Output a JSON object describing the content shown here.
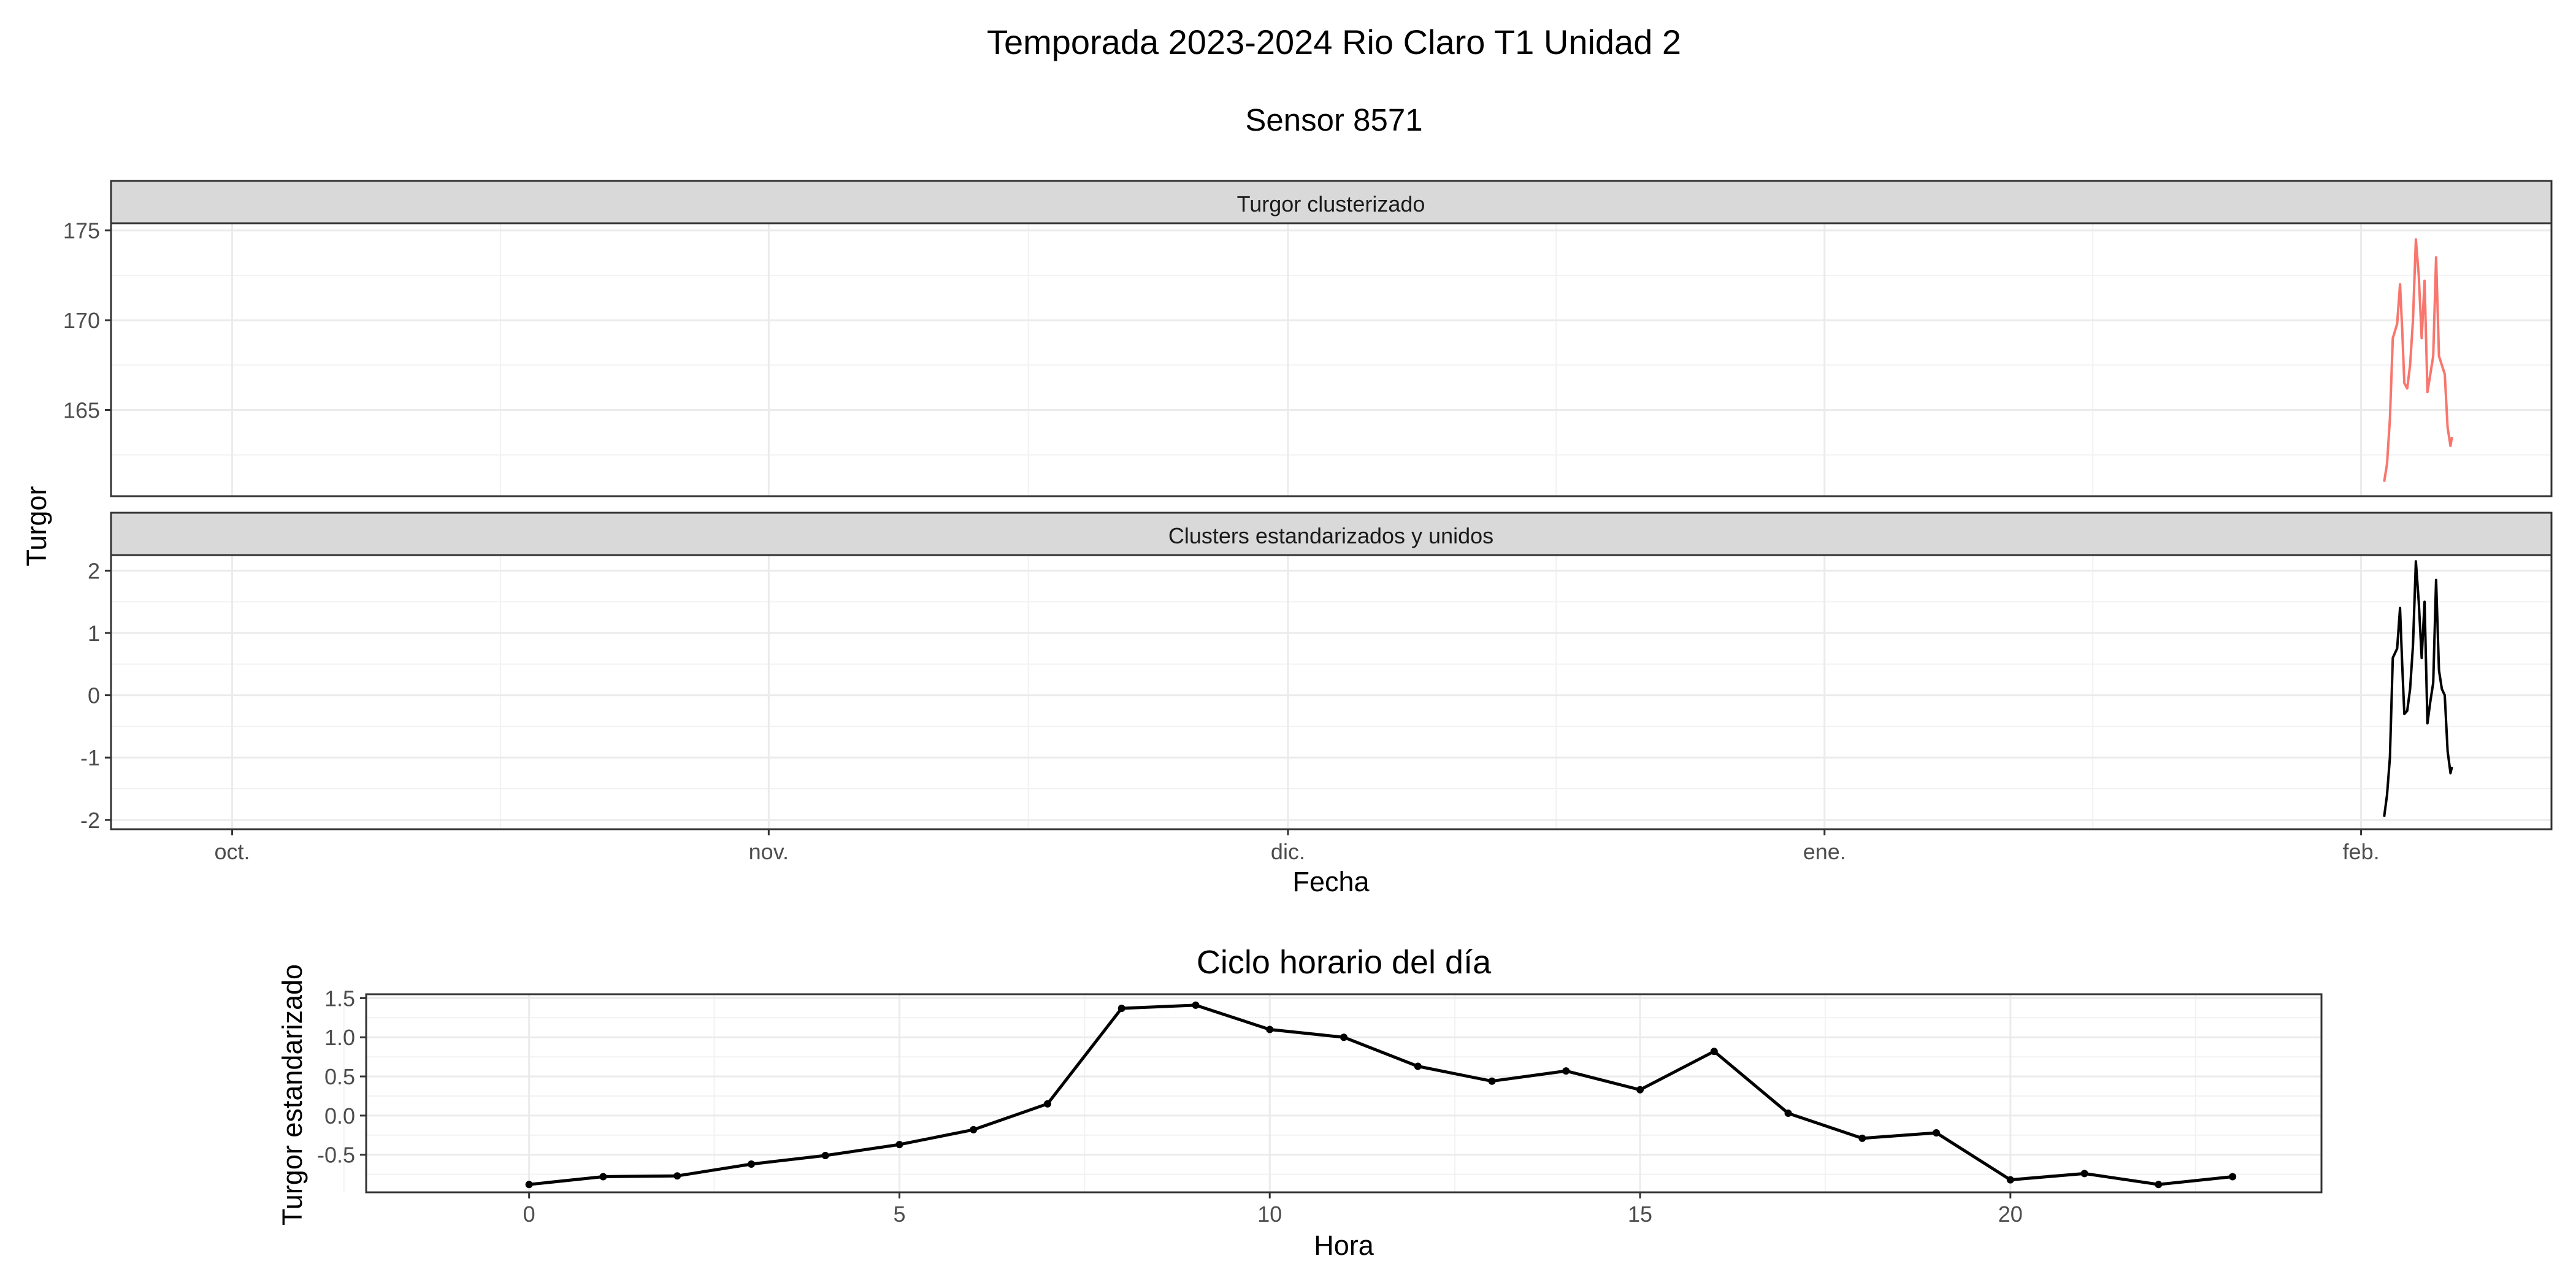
{
  "figure": {
    "title": "Temporada 2023-2024 Rio Claro T1 Unidad 2",
    "subtitle": "Sensor 8571"
  },
  "chart_data": [
    {
      "type": "line",
      "facet_label": "Turgor clusterizado",
      "ylabel": "Turgor",
      "xlabel": "Fecha",
      "x_axis": {
        "kind": "date",
        "range": [
          "2023-09-24",
          "2024-02-12"
        ],
        "ticks": [
          {
            "date": "2023-10-01",
            "label": "oct."
          },
          {
            "date": "2023-11-01",
            "label": "nov."
          },
          {
            "date": "2023-12-01",
            "label": "dic."
          },
          {
            "date": "2024-01-01",
            "label": "ene."
          },
          {
            "date": "2024-02-01",
            "label": "feb."
          }
        ]
      },
      "ylim": [
        160.2,
        175.4
      ],
      "yticks": [
        165,
        170,
        175
      ],
      "grid": true,
      "series": [
        {
          "color": "#F8766D",
          "points": [
            [
              "2024-02-02 08:00",
              161.0
            ],
            [
              "2024-02-02 12:00",
              162.0
            ],
            [
              "2024-02-02 16:00",
              164.5
            ],
            [
              "2024-02-02 20:00",
              169.0
            ],
            [
              "2024-02-03 02:00",
              169.8
            ],
            [
              "2024-02-03 06:00",
              172.0
            ],
            [
              "2024-02-03 09:00",
              169.5
            ],
            [
              "2024-02-03 12:00",
              166.5
            ],
            [
              "2024-02-03 16:00",
              166.2
            ],
            [
              "2024-02-03 20:00",
              167.5
            ],
            [
              "2024-02-04 00:00",
              170.0
            ],
            [
              "2024-02-04 04:00",
              174.5
            ],
            [
              "2024-02-04 08:00",
              172.5
            ],
            [
              "2024-02-04 12:00",
              169.0
            ],
            [
              "2024-02-04 16:00",
              172.2
            ],
            [
              "2024-02-04 20:00",
              166.0
            ],
            [
              "2024-02-05 00:00",
              167.0
            ],
            [
              "2024-02-05 04:00",
              168.0
            ],
            [
              "2024-02-05 08:00",
              173.5
            ],
            [
              "2024-02-05 12:00",
              168.0
            ],
            [
              "2024-02-05 16:00",
              167.5
            ],
            [
              "2024-02-05 20:00",
              167.0
            ],
            [
              "2024-02-06 00:00",
              164.0
            ],
            [
              "2024-02-06 04:00",
              163.0
            ],
            [
              "2024-02-06 06:00",
              163.5
            ]
          ]
        }
      ]
    },
    {
      "type": "line",
      "facet_label": "Clusters estandarizados y unidos",
      "ylabel": "Turgor",
      "xlabel": "Fecha",
      "ylim": [
        -2.15,
        2.25
      ],
      "yticks": [
        -2,
        -1,
        0,
        1,
        2
      ],
      "grid": true,
      "series": [
        {
          "color": "#000000",
          "points": [
            [
              "2024-02-02 08:00",
              -1.95
            ],
            [
              "2024-02-02 12:00",
              -1.6
            ],
            [
              "2024-02-02 16:00",
              -1.0
            ],
            [
              "2024-02-02 20:00",
              0.6
            ],
            [
              "2024-02-03 02:00",
              0.75
            ],
            [
              "2024-02-03 06:00",
              1.4
            ],
            [
              "2024-02-03 09:00",
              0.5
            ],
            [
              "2024-02-03 12:00",
              -0.3
            ],
            [
              "2024-02-03 16:00",
              -0.25
            ],
            [
              "2024-02-03 20:00",
              0.1
            ],
            [
              "2024-02-04 00:00",
              0.8
            ],
            [
              "2024-02-04 04:00",
              2.15
            ],
            [
              "2024-02-04 08:00",
              1.5
            ],
            [
              "2024-02-04 12:00",
              0.6
            ],
            [
              "2024-02-04 16:00",
              1.5
            ],
            [
              "2024-02-04 20:00",
              -0.45
            ],
            [
              "2024-02-05 00:00",
              -0.1
            ],
            [
              "2024-02-05 04:00",
              0.2
            ],
            [
              "2024-02-05 08:00",
              1.85
            ],
            [
              "2024-02-05 12:00",
              0.4
            ],
            [
              "2024-02-05 16:00",
              0.1
            ],
            [
              "2024-02-05 20:00",
              0.0
            ],
            [
              "2024-02-06 00:00",
              -0.9
            ],
            [
              "2024-02-06 04:00",
              -1.25
            ],
            [
              "2024-02-06 06:00",
              -1.15
            ]
          ]
        }
      ]
    },
    {
      "type": "line",
      "title": "Ciclo horario del día",
      "xlabel": "Hora",
      "ylabel": "Turgor estandarizado",
      "xlim": [
        -2.2,
        24.2
      ],
      "ylim": [
        -0.98,
        1.55
      ],
      "xticks": [
        0,
        5,
        10,
        15,
        20
      ],
      "yticks": [
        -0.5,
        0.0,
        0.5,
        1.0,
        1.5
      ],
      "ytick_labels": [
        "-0.5",
        "0.0",
        "0.5",
        "1.0",
        "1.5"
      ],
      "grid": true,
      "markers": true,
      "x": [
        0,
        1,
        2,
        3,
        4,
        5,
        6,
        7,
        8,
        9,
        10,
        11,
        12,
        13,
        14,
        15,
        16,
        17,
        18,
        19,
        20,
        21,
        22,
        23
      ],
      "series": [
        {
          "color": "#000000",
          "values": [
            -0.88,
            -0.78,
            -0.77,
            -0.62,
            -0.51,
            -0.37,
            -0.18,
            0.15,
            1.37,
            1.41,
            1.1,
            1.0,
            0.63,
            0.44,
            0.57,
            0.33,
            0.82,
            0.03,
            -0.29,
            -0.22,
            -0.82,
            -0.74,
            -0.88,
            -0.78
          ]
        }
      ]
    }
  ]
}
